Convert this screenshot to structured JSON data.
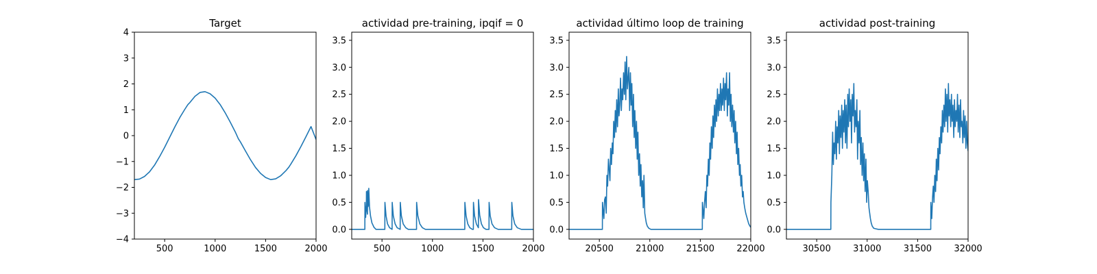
{
  "chart_data": [
    {
      "type": "line",
      "title": "Target",
      "xlabel": "",
      "ylabel": "",
      "xlim": [
        200,
        2000
      ],
      "ylim": [
        -4,
        4
      ],
      "xticks": [
        500,
        1000,
        1500,
        2000
      ],
      "yticks": [
        -4,
        -3,
        -2,
        -1,
        0,
        1,
        2,
        3,
        4
      ],
      "grid": false,
      "line_color": "#1f77b4",
      "series": [
        {
          "x": [
            200,
            250,
            300,
            350,
            400,
            450,
            500,
            550,
            600,
            650,
            700,
            730,
            750,
            800,
            850,
            900,
            950,
            1000,
            1050,
            1100,
            1150,
            1200,
            1230,
            1250,
            1300,
            1350,
            1400,
            1450,
            1500,
            1550,
            1600,
            1650,
            1700,
            1730,
            1750,
            1800,
            1850,
            1900,
            1950,
            2000
          ],
          "values": [
            -1.7,
            -1.68,
            -1.58,
            -1.4,
            -1.14,
            -0.81,
            -0.45,
            -0.06,
            0.33,
            0.7,
            1.02,
            1.2,
            1.28,
            1.52,
            1.67,
            1.7,
            1.62,
            1.45,
            1.2,
            0.88,
            0.52,
            0.14,
            -0.12,
            -0.24,
            -0.59,
            -0.93,
            -1.23,
            -1.46,
            -1.62,
            -1.7,
            -1.67,
            -1.55,
            -1.36,
            -1.22,
            -1.1,
            -0.78,
            -0.42,
            -0.04,
            0.35,
            -0.15
          ]
        }
      ]
    },
    {
      "type": "line",
      "title": "actividad pre-training, ipqif = 0",
      "xlabel": "",
      "ylabel": "",
      "xlim": [
        200,
        2000
      ],
      "ylim": [
        -0.18,
        3.65
      ],
      "xticks": [
        500,
        1000,
        1500,
        2000
      ],
      "yticks": [
        0.0,
        0.5,
        1.0,
        1.5,
        2.0,
        2.5,
        3.0,
        3.5
      ],
      "grid": false,
      "line_color": "#1f77b4",
      "series": [
        {
          "x": [
            200,
            330,
            331,
            338,
            345,
            346,
            352,
            356,
            357,
            362,
            368,
            369,
            376,
            386,
            400,
            420,
            440,
            528,
            529,
            540,
            555,
            575,
            600,
            601,
            612,
            630,
            650,
            680,
            681,
            692,
            710,
            735,
            760,
            842,
            843,
            855,
            875,
            900,
            930,
            1320,
            1321,
            1333,
            1350,
            1370,
            1395,
            1405,
            1406,
            1417,
            1435,
            1455,
            1456,
            1468,
            1485,
            1505,
            1530,
            1560,
            1561,
            1572,
            1590,
            1615,
            1650,
            1785,
            1786,
            1797,
            1815,
            1840,
            1880,
            2000
          ],
          "values": [
            0,
            0,
            0.5,
            0.22,
            0.45,
            0.7,
            0.35,
            0.28,
            0.72,
            0.42,
            0.48,
            0.76,
            0.42,
            0.25,
            0.12,
            0.04,
            0,
            0,
            0.5,
            0.25,
            0.1,
            0.03,
            0,
            0.5,
            0.25,
            0.1,
            0.03,
            0,
            0.5,
            0.25,
            0.1,
            0.03,
            0,
            0,
            0.5,
            0.25,
            0.1,
            0.03,
            0,
            0,
            0.5,
            0.25,
            0.1,
            0.03,
            0,
            0,
            0.5,
            0.25,
            0.1,
            0.03,
            0.55,
            0.26,
            0.1,
            0.03,
            0,
            0,
            0.5,
            0.25,
            0.1,
            0.03,
            0,
            0,
            0.5,
            0.25,
            0.1,
            0.03,
            0,
            0
          ]
        }
      ]
    },
    {
      "type": "line",
      "title": "actividad último loop de training",
      "xlabel": "",
      "ylabel": "",
      "xlim": [
        20200,
        22000
      ],
      "ylim": [
        -0.18,
        3.65
      ],
      "xticks": [
        20500,
        21000,
        21500,
        22000
      ],
      "yticks": [
        0.0,
        0.5,
        1.0,
        1.5,
        2.0,
        2.5,
        3.0,
        3.5
      ],
      "grid": false,
      "line_color": "#1f77b4",
      "series": [
        {
          "x": [
            20200,
            20530,
            20531,
            20545,
            20552,
            20560,
            20568,
            20575,
            20582,
            20590,
            20598,
            20605,
            20612,
            20620,
            20628,
            20635,
            20642,
            20650,
            20658,
            20665,
            20672,
            20680,
            20688,
            20695,
            20702,
            20710,
            20718,
            20725,
            20732,
            20740,
            20748,
            20755,
            20762,
            20770,
            20778,
            20785,
            20792,
            20800,
            20808,
            20815,
            20822,
            20830,
            20838,
            20845,
            20852,
            20860,
            20868,
            20875,
            20882,
            20890,
            20898,
            20905,
            20912,
            20920,
            20928,
            20935,
            20942,
            20950,
            20958,
            20965,
            20975,
            20990,
            21010,
            21040,
            21080,
            21520,
            21521,
            21535,
            21542,
            21550,
            21558,
            21565,
            21572,
            21580,
            21588,
            21595,
            21602,
            21610,
            21618,
            21625,
            21632,
            21640,
            21648,
            21655,
            21662,
            21670,
            21678,
            21685,
            21692,
            21700,
            21708,
            21715,
            21722,
            21730,
            21738,
            21745,
            21752,
            21760,
            21768,
            21775,
            21782,
            21790,
            21798,
            21805,
            21812,
            21820,
            21828,
            21835,
            21842,
            21850,
            21858,
            21865,
            21872,
            21880,
            21888,
            21895,
            21902,
            21910,
            21918,
            21925,
            21932,
            21940,
            21950,
            21965,
            21980,
            21995,
            22000
          ],
          "values": [
            0,
            0,
            0.5,
            0.2,
            0.55,
            0.6,
            0.3,
            1.0,
            0.8,
            1.3,
            1.1,
            0.9,
            1.5,
            1.2,
            1.6,
            1.4,
            2.0,
            1.7,
            2.2,
            1.8,
            2.4,
            1.9,
            2.6,
            2.1,
            2.3,
            2.8,
            2.2,
            2.6,
            2.4,
            2.9,
            2.5,
            3.1,
            2.4,
            3.2,
            2.6,
            2.8,
            3.0,
            2.2,
            2.9,
            2.3,
            2.7,
            1.9,
            2.5,
            1.7,
            2.2,
            1.5,
            2.0,
            1.3,
            1.8,
            1.0,
            1.4,
            0.8,
            1.2,
            0.6,
            0.9,
            0.4,
            1.0,
            0.3,
            0.2,
            0.12,
            0.06,
            0.02,
            0,
            0,
            0,
            0,
            0.5,
            0.2,
            0.5,
            0.7,
            0.4,
            1.0,
            0.8,
            1.3,
            1.0,
            1.6,
            1.3,
            1.9,
            1.5,
            2.1,
            1.7,
            2.3,
            1.9,
            2.4,
            2.0,
            2.6,
            2.1,
            2.5,
            2.2,
            2.7,
            2.2,
            2.6,
            2.3,
            2.8,
            2.2,
            2.7,
            2.4,
            2.9,
            2.1,
            2.6,
            2.3,
            2.9,
            2.0,
            2.5,
            1.9,
            2.3,
            1.8,
            2.2,
            1.6,
            2.0,
            1.4,
            1.8,
            1.2,
            1.5,
            1.0,
            1.2,
            0.8,
            1.0,
            0.6,
            0.7,
            0.5,
            0.4,
            0.3,
            0.2,
            0.1,
            0.05,
            0.04
          ]
        }
      ]
    },
    {
      "type": "line",
      "title": "actividad post-training",
      "xlabel": "",
      "ylabel": "",
      "xlim": [
        30200,
        32000
      ],
      "ylim": [
        -0.18,
        3.65
      ],
      "xticks": [
        30500,
        31000,
        31500,
        32000
      ],
      "yticks": [
        0.0,
        0.5,
        1.0,
        1.5,
        2.0,
        2.5,
        3.0,
        3.5
      ],
      "grid": false,
      "line_color": "#1f77b4",
      "series": [
        {
          "x": [
            30200,
            30640,
            30641,
            30650,
            30658,
            30665,
            30672,
            30680,
            30688,
            30695,
            30702,
            30710,
            30718,
            30725,
            30732,
            30740,
            30748,
            30755,
            30762,
            30770,
            30778,
            30785,
            30792,
            30800,
            30808,
            30815,
            30822,
            30830,
            30838,
            30845,
            30852,
            30860,
            30868,
            30875,
            30882,
            30890,
            30898,
            30905,
            30912,
            30920,
            30928,
            30935,
            30942,
            30950,
            30958,
            30965,
            30972,
            30980,
            30988,
            30995,
            31002,
            31010,
            31018,
            31025,
            31032,
            31040,
            31050,
            31065,
            31085,
            31110,
            31150,
            31630,
            31631,
            31640,
            31648,
            31655,
            31662,
            31670,
            31678,
            31685,
            31692,
            31700,
            31708,
            31715,
            31722,
            31730,
            31738,
            31745,
            31752,
            31760,
            31768,
            31775,
            31782,
            31790,
            31798,
            31805,
            31812,
            31820,
            31828,
            31835,
            31842,
            31850,
            31858,
            31865,
            31872,
            31880,
            31888,
            31895,
            31902,
            31910,
            31918,
            31925,
            31932,
            31940,
            31948,
            31955,
            31962,
            31970,
            31978,
            31985,
            31992,
            32000
          ],
          "values": [
            0,
            0,
            0.5,
            1.0,
            1.8,
            1.2,
            1.6,
            1.4,
            2.0,
            1.3,
            1.9,
            1.6,
            2.2,
            1.4,
            2.1,
            1.7,
            2.3,
            1.5,
            2.2,
            1.8,
            2.4,
            1.6,
            2.3,
            1.5,
            2.5,
            1.9,
            2.6,
            2.0,
            2.4,
            1.6,
            2.5,
            2.1,
            2.7,
            1.8,
            2.2,
            1.9,
            2.4,
            1.3,
            2.0,
            1.6,
            2.2,
            1.2,
            1.7,
            1.0,
            1.6,
            0.9,
            1.4,
            0.7,
            1.3,
            0.5,
            0.9,
            0.7,
            0.4,
            0.3,
            0.2,
            0.12,
            0.06,
            0.02,
            0.01,
            0,
            0,
            0,
            0.5,
            0.2,
            0.6,
            0.8,
            0.5,
            1.0,
            0.7,
            1.3,
            0.9,
            1.5,
            1.1,
            1.7,
            1.4,
            1.9,
            1.6,
            2.2,
            1.8,
            2.3,
            1.9,
            2.6,
            2.0,
            2.5,
            1.8,
            2.7,
            2.1,
            2.4,
            1.9,
            2.5,
            2.0,
            2.3,
            1.7,
            2.4,
            1.9,
            2.2,
            2.0,
            2.5,
            1.8,
            2.3,
            1.7,
            2.4,
            1.9,
            2.0,
            1.6,
            2.2,
            1.7,
            2.1,
            1.5,
            2.0,
            1.6,
            1.45
          ]
        }
      ]
    }
  ]
}
